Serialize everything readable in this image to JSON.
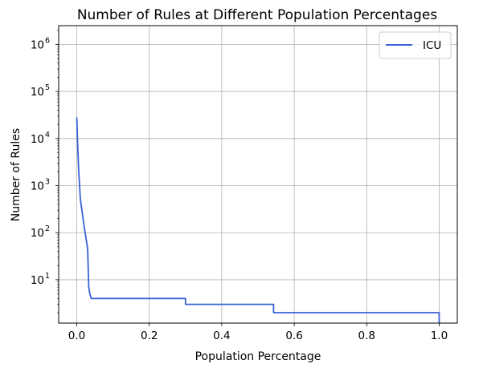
{
  "chart_data": {
    "type": "line",
    "title": "Number of Rules at Different Population Percentages",
    "xlabel": "Population Percentage",
    "ylabel": "Number of Rules",
    "xlim": [
      -0.05,
      1.05
    ],
    "ylim": [
      1.2,
      2500000
    ],
    "yscale": "log",
    "grid": true,
    "legend_position": "top-right",
    "x_ticks": [
      0.0,
      0.2,
      0.4,
      0.6,
      0.8,
      1.0
    ],
    "x_tick_labels": [
      "0.0",
      "0.2",
      "0.4",
      "0.6",
      "0.8",
      "1.0"
    ],
    "y_ticks": [
      {
        "value": 10,
        "base": "10",
        "exp": "1"
      },
      {
        "value": 100,
        "base": "10",
        "exp": "2"
      },
      {
        "value": 1000,
        "base": "10",
        "exp": "3"
      },
      {
        "value": 10000,
        "base": "10",
        "exp": "4"
      },
      {
        "value": 100000,
        "base": "10",
        "exp": "5"
      },
      {
        "value": 1000000,
        "base": "10",
        "exp": "6"
      }
    ],
    "series": [
      {
        "name": "ICU",
        "color": "#3a62d6",
        "step": true,
        "x": [
          0.0,
          0.002,
          0.005,
          0.01,
          0.015,
          0.02,
          0.025,
          0.03,
          0.033,
          0.036,
          0.04,
          0.3,
          0.3,
          0.543,
          0.543,
          1.0,
          1.0
        ],
        "y": [
          28000,
          9000,
          2300,
          500,
          270,
          140,
          80,
          45,
          7,
          5,
          4,
          4,
          3,
          3,
          2,
          2,
          1
        ]
      }
    ]
  }
}
